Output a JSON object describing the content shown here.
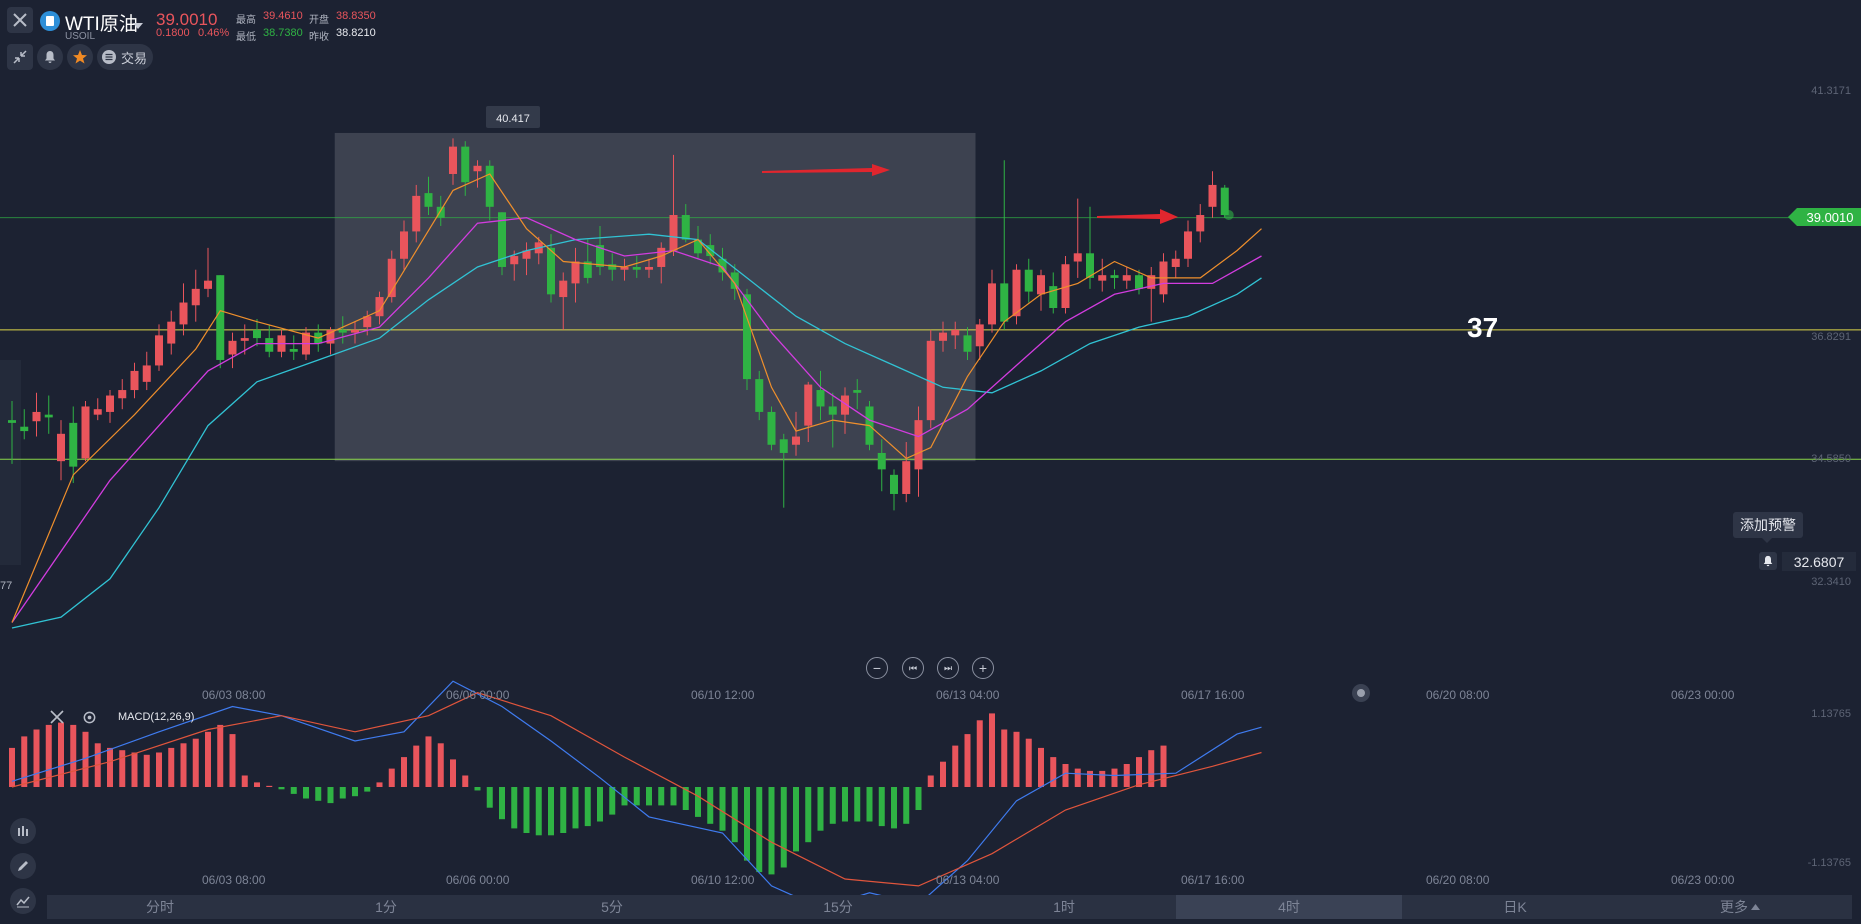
{
  "header": {
    "symbol_name": "WTI原油",
    "symbol_code": "USOIL",
    "last_price": "39.0010",
    "change": "0.1800",
    "change_pct": "0.46%",
    "high_label": "最高",
    "high_value": "39.4610",
    "open_label": "开盘",
    "open_value": "38.8350",
    "low_label": "最低",
    "low_value": "38.7380",
    "prev_close_label": "昨收",
    "prev_close_value": "38.8210",
    "trade_label": "交易"
  },
  "price_axis": {
    "labels": [
      "41.3171",
      "36.8291",
      "34.5850",
      "32.3410"
    ],
    "current_price_tag": "39.0010",
    "alert_price": "32.6807",
    "alert_tooltip": "添加预警",
    "left_cut_label": "77"
  },
  "annotations": {
    "peak_label": "40.417",
    "level_text": "37"
  },
  "time_axis": {
    "labels": [
      "06/03 08:00",
      "06/06 00:00",
      "06/10 12:00",
      "06/13 04:00",
      "06/17 16:00",
      "06/20 08:00",
      "06/23 00:00"
    ]
  },
  "macd": {
    "title": "MACD(12,26,9)",
    "upper_label": "1.13765",
    "lower_label": "-1.13765"
  },
  "controls": {
    "zoom_out": "−",
    "prev": "⏮",
    "next": "⏭",
    "zoom_in": "+"
  },
  "timeframes": [
    {
      "label": "分时",
      "active": false
    },
    {
      "label": "1分",
      "active": false
    },
    {
      "label": "5分",
      "active": false
    },
    {
      "label": "15分",
      "active": false
    },
    {
      "label": "1时",
      "active": false
    },
    {
      "label": "4时",
      "active": true
    },
    {
      "label": "日K",
      "active": false
    },
    {
      "label": "更多",
      "active": false
    }
  ],
  "colors": {
    "background": "#1c2232",
    "up": "#e9555c",
    "down": "#2fb344",
    "ma5": "#ef8f2c",
    "ma10": "#d23cdf",
    "ma20": "#31c3d4",
    "dif": "#3f7bef",
    "dea": "#e0553c"
  },
  "chart_data": {
    "type": "candlestick",
    "x_range": [
      "06/01 12:00",
      "06/19 08:00"
    ],
    "ylim": [
      30.9,
      42.3
    ],
    "candles": [
      {
        "o": 35.3,
        "h": 35.65,
        "l": 34.5,
        "c": 35.25
      },
      {
        "o": 35.18,
        "h": 35.5,
        "l": 34.95,
        "c": 35.1
      },
      {
        "o": 35.28,
        "h": 35.8,
        "l": 35.0,
        "c": 35.45
      },
      {
        "o": 35.4,
        "h": 35.75,
        "l": 35.05,
        "c": 35.35
      },
      {
        "o": 34.55,
        "h": 35.3,
        "l": 34.2,
        "c": 35.05
      },
      {
        "o": 35.25,
        "h": 35.55,
        "l": 34.15,
        "c": 34.45
      },
      {
        "o": 34.6,
        "h": 35.65,
        "l": 34.55,
        "c": 35.55
      },
      {
        "o": 35.4,
        "h": 35.7,
        "l": 35.3,
        "c": 35.5
      },
      {
        "o": 35.45,
        "h": 35.85,
        "l": 35.25,
        "c": 35.75
      },
      {
        "o": 35.7,
        "h": 36.05,
        "l": 35.5,
        "c": 35.85
      },
      {
        "o": 35.85,
        "h": 36.35,
        "l": 35.7,
        "c": 36.2
      },
      {
        "o": 36.0,
        "h": 36.55,
        "l": 35.85,
        "c": 36.3
      },
      {
        "o": 36.3,
        "h": 37.05,
        "l": 36.2,
        "c": 36.85
      },
      {
        "o": 36.7,
        "h": 37.3,
        "l": 36.5,
        "c": 37.1
      },
      {
        "o": 37.05,
        "h": 37.8,
        "l": 36.85,
        "c": 37.45
      },
      {
        "o": 37.4,
        "h": 38.05,
        "l": 37.1,
        "c": 37.7
      },
      {
        "o": 37.7,
        "h": 38.45,
        "l": 37.55,
        "c": 37.85
      },
      {
        "o": 37.95,
        "h": 37.95,
        "l": 36.25,
        "c": 36.4
      },
      {
        "o": 36.5,
        "h": 36.9,
        "l": 36.25,
        "c": 36.75
      },
      {
        "o": 36.75,
        "h": 37.05,
        "l": 36.5,
        "c": 36.8
      },
      {
        "o": 36.95,
        "h": 37.15,
        "l": 36.65,
        "c": 36.8
      },
      {
        "o": 36.8,
        "h": 37.05,
        "l": 36.45,
        "c": 36.55
      },
      {
        "o": 36.55,
        "h": 36.95,
        "l": 36.45,
        "c": 36.85
      },
      {
        "o": 36.6,
        "h": 36.85,
        "l": 36.4,
        "c": 36.55
      },
      {
        "o": 36.5,
        "h": 37.0,
        "l": 36.4,
        "c": 36.9
      },
      {
        "o": 36.9,
        "h": 37.05,
        "l": 36.55,
        "c": 36.7
      },
      {
        "o": 36.7,
        "h": 37.0,
        "l": 36.5,
        "c": 36.95
      },
      {
        "o": 36.95,
        "h": 37.2,
        "l": 36.7,
        "c": 36.9
      },
      {
        "o": 36.9,
        "h": 37.1,
        "l": 36.7,
        "c": 36.95
      },
      {
        "o": 37.0,
        "h": 37.3,
        "l": 36.85,
        "c": 37.2
      },
      {
        "o": 37.2,
        "h": 37.65,
        "l": 37.05,
        "c": 37.55
      },
      {
        "o": 37.55,
        "h": 38.4,
        "l": 37.45,
        "c": 38.25
      },
      {
        "o": 38.25,
        "h": 38.95,
        "l": 38.05,
        "c": 38.75
      },
      {
        "o": 38.75,
        "h": 39.6,
        "l": 38.55,
        "c": 39.4
      },
      {
        "o": 39.45,
        "h": 39.75,
        "l": 39.05,
        "c": 39.2
      },
      {
        "o": 39.2,
        "h": 39.4,
        "l": 38.85,
        "c": 39.0
      },
      {
        "o": 39.8,
        "h": 40.45,
        "l": 39.6,
        "c": 40.3
      },
      {
        "o": 40.3,
        "h": 40.4,
        "l": 39.4,
        "c": 39.65
      },
      {
        "o": 39.85,
        "h": 40.05,
        "l": 39.55,
        "c": 39.95
      },
      {
        "o": 39.95,
        "h": 40.05,
        "l": 38.95,
        "c": 39.2
      },
      {
        "o": 39.1,
        "h": 39.1,
        "l": 37.95,
        "c": 38.1
      },
      {
        "o": 38.15,
        "h": 38.4,
        "l": 37.85,
        "c": 38.3
      },
      {
        "o": 38.25,
        "h": 38.55,
        "l": 37.95,
        "c": 38.4
      },
      {
        "o": 38.35,
        "h": 38.65,
        "l": 38.15,
        "c": 38.55
      },
      {
        "o": 38.45,
        "h": 38.7,
        "l": 37.45,
        "c": 37.6
      },
      {
        "o": 37.55,
        "h": 38.0,
        "l": 36.95,
        "c": 37.85
      },
      {
        "o": 37.8,
        "h": 38.45,
        "l": 37.45,
        "c": 38.2
      },
      {
        "o": 38.2,
        "h": 38.6,
        "l": 37.8,
        "c": 37.9
      },
      {
        "o": 38.5,
        "h": 38.85,
        "l": 37.95,
        "c": 38.1
      },
      {
        "o": 38.15,
        "h": 38.35,
        "l": 37.85,
        "c": 38.05
      },
      {
        "o": 38.05,
        "h": 38.25,
        "l": 37.85,
        "c": 38.1
      },
      {
        "o": 38.1,
        "h": 38.3,
        "l": 37.9,
        "c": 38.05
      },
      {
        "o": 38.05,
        "h": 38.25,
        "l": 37.9,
        "c": 38.1
      },
      {
        "o": 38.1,
        "h": 38.55,
        "l": 37.8,
        "c": 38.45
      },
      {
        "o": 38.4,
        "h": 40.15,
        "l": 38.3,
        "c": 39.05
      },
      {
        "o": 39.05,
        "h": 39.25,
        "l": 38.55,
        "c": 38.6
      },
      {
        "o": 38.6,
        "h": 38.85,
        "l": 38.25,
        "c": 38.35
      },
      {
        "o": 38.5,
        "h": 38.7,
        "l": 38.15,
        "c": 38.3
      },
      {
        "o": 38.25,
        "h": 38.45,
        "l": 37.85,
        "c": 38.0
      },
      {
        "o": 38.0,
        "h": 38.15,
        "l": 37.5,
        "c": 37.7
      },
      {
        "o": 37.6,
        "h": 37.7,
        "l": 35.85,
        "c": 36.05
      },
      {
        "o": 36.05,
        "h": 36.2,
        "l": 35.3,
        "c": 35.45
      },
      {
        "o": 35.45,
        "h": 35.55,
        "l": 34.75,
        "c": 34.85
      },
      {
        "o": 34.95,
        "h": 35.05,
        "l": 33.7,
        "c": 34.7
      },
      {
        "o": 34.85,
        "h": 35.45,
        "l": 34.65,
        "c": 35.0
      },
      {
        "o": 35.2,
        "h": 36.0,
        "l": 34.9,
        "c": 35.95
      },
      {
        "o": 35.85,
        "h": 36.2,
        "l": 35.3,
        "c": 35.55
      },
      {
        "o": 35.55,
        "h": 35.8,
        "l": 34.8,
        "c": 35.4
      },
      {
        "o": 35.4,
        "h": 35.9,
        "l": 35.05,
        "c": 35.75
      },
      {
        "o": 35.85,
        "h": 36.05,
        "l": 35.5,
        "c": 35.8
      },
      {
        "o": 35.55,
        "h": 35.65,
        "l": 34.75,
        "c": 34.85
      },
      {
        "o": 34.7,
        "h": 34.95,
        "l": 34.0,
        "c": 34.4
      },
      {
        "o": 34.3,
        "h": 34.4,
        "l": 33.65,
        "c": 33.95
      },
      {
        "o": 33.95,
        "h": 34.9,
        "l": 33.8,
        "c": 34.55
      },
      {
        "o": 34.4,
        "h": 35.55,
        "l": 33.9,
        "c": 35.3
      },
      {
        "o": 35.3,
        "h": 36.95,
        "l": 35.15,
        "c": 36.75
      },
      {
        "o": 36.75,
        "h": 37.1,
        "l": 36.55,
        "c": 36.9
      },
      {
        "o": 36.85,
        "h": 37.1,
        "l": 36.6,
        "c": 36.95
      },
      {
        "o": 36.85,
        "h": 37.0,
        "l": 36.4,
        "c": 36.55
      },
      {
        "o": 36.65,
        "h": 37.15,
        "l": 36.4,
        "c": 37.05
      },
      {
        "o": 37.05,
        "h": 38.05,
        "l": 36.9,
        "c": 37.8
      },
      {
        "o": 37.8,
        "h": 40.05,
        "l": 36.95,
        "c": 37.1
      },
      {
        "o": 37.2,
        "h": 38.15,
        "l": 37.05,
        "c": 38.05
      },
      {
        "o": 38.05,
        "h": 38.25,
        "l": 37.45,
        "c": 37.65
      },
      {
        "o": 37.6,
        "h": 38.05,
        "l": 37.3,
        "c": 37.95
      },
      {
        "o": 37.75,
        "h": 38.0,
        "l": 37.25,
        "c": 37.35
      },
      {
        "o": 37.35,
        "h": 38.3,
        "l": 37.25,
        "c": 38.15
      },
      {
        "o": 38.2,
        "h": 39.35,
        "l": 37.9,
        "c": 38.35
      },
      {
        "o": 38.35,
        "h": 39.2,
        "l": 37.7,
        "c": 37.9
      },
      {
        "o": 37.85,
        "h": 38.25,
        "l": 37.65,
        "c": 37.95
      },
      {
        "o": 37.95,
        "h": 38.05,
        "l": 37.7,
        "c": 37.9
      },
      {
        "o": 37.85,
        "h": 38.1,
        "l": 37.7,
        "c": 37.95
      },
      {
        "o": 37.95,
        "h": 38.05,
        "l": 37.6,
        "c": 37.7
      },
      {
        "o": 37.7,
        "h": 38.1,
        "l": 37.1,
        "c": 37.95
      },
      {
        "o": 37.6,
        "h": 38.35,
        "l": 37.45,
        "c": 38.2
      },
      {
        "o": 38.1,
        "h": 38.4,
        "l": 37.9,
        "c": 38.25
      },
      {
        "o": 38.25,
        "h": 38.95,
        "l": 38.1,
        "c": 38.75
      },
      {
        "o": 38.75,
        "h": 39.25,
        "l": 38.55,
        "c": 39.05
      },
      {
        "o": 39.2,
        "h": 39.85,
        "l": 39.0,
        "c": 39.6
      },
      {
        "o": 39.55,
        "h": 39.6,
        "l": 39.0,
        "c": 39.05
      }
    ],
    "ma5": [
      [
        0,
        31.6
      ],
      [
        5,
        34.3
      ],
      [
        10,
        35.4
      ],
      [
        15,
        36.6
      ],
      [
        17,
        37.3
      ],
      [
        20,
        37.1
      ],
      [
        25,
        36.8
      ],
      [
        30,
        37.3
      ],
      [
        33,
        38.4
      ],
      [
        36,
        39.5
      ],
      [
        39,
        39.8
      ],
      [
        42,
        38.8
      ],
      [
        45,
        38.2
      ],
      [
        50,
        38.1
      ],
      [
        53,
        38.3
      ],
      [
        56,
        38.6
      ],
      [
        59,
        37.8
      ],
      [
        62,
        35.9
      ],
      [
        64,
        35.1
      ],
      [
        67,
        35.3
      ],
      [
        70,
        35.2
      ],
      [
        73,
        34.6
      ],
      [
        75,
        34.8
      ],
      [
        78,
        36.1
      ],
      [
        81,
        37.1
      ],
      [
        84,
        37.6
      ],
      [
        87,
        37.8
      ],
      [
        90,
        38.2
      ],
      [
        93,
        37.9
      ],
      [
        97,
        37.9
      ],
      [
        100,
        38.4
      ],
      [
        102,
        38.8
      ]
    ],
    "ma10": [
      [
        0,
        31.6
      ],
      [
        4,
        32.9
      ],
      [
        8,
        34.2
      ],
      [
        12,
        35.2
      ],
      [
        16,
        36.2
      ],
      [
        20,
        36.7
      ],
      [
        25,
        36.7
      ],
      [
        30,
        37.0
      ],
      [
        34,
        37.9
      ],
      [
        38,
        38.9
      ],
      [
        42,
        39.0
      ],
      [
        46,
        38.6
      ],
      [
        50,
        38.3
      ],
      [
        54,
        38.4
      ],
      [
        58,
        38.1
      ],
      [
        62,
        36.9
      ],
      [
        66,
        35.9
      ],
      [
        70,
        35.3
      ],
      [
        74,
        35.0
      ],
      [
        78,
        35.5
      ],
      [
        82,
        36.3
      ],
      [
        86,
        37.1
      ],
      [
        90,
        37.6
      ],
      [
        94,
        37.8
      ],
      [
        98,
        37.8
      ],
      [
        102,
        38.3
      ]
    ],
    "ma20": [
      [
        0,
        31.5
      ],
      [
        4,
        31.7
      ],
      [
        8,
        32.4
      ],
      [
        12,
        33.7
      ],
      [
        16,
        35.2
      ],
      [
        20,
        36.0
      ],
      [
        25,
        36.4
      ],
      [
        30,
        36.8
      ],
      [
        34,
        37.5
      ],
      [
        38,
        38.1
      ],
      [
        42,
        38.4
      ],
      [
        46,
        38.6
      ],
      [
        52,
        38.7
      ],
      [
        56,
        38.6
      ],
      [
        60,
        37.9
      ],
      [
        64,
        37.2
      ],
      [
        68,
        36.7
      ],
      [
        72,
        36.3
      ],
      [
        76,
        35.9
      ],
      [
        80,
        35.8
      ],
      [
        84,
        36.2
      ],
      [
        88,
        36.7
      ],
      [
        92,
        37.0
      ],
      [
        96,
        37.2
      ],
      [
        100,
        37.6
      ],
      [
        102,
        37.9
      ]
    ],
    "range_box": {
      "x_from": 27,
      "x_to": 78,
      "y_from": 34.55,
      "y_to": 40.55
    },
    "horizontal_lines": [
      39.001,
      36.95,
      34.585
    ],
    "macd_hist": [
      0.34,
      0.44,
      0.5,
      0.54,
      0.56,
      0.54,
      0.48,
      0.38,
      0.34,
      0.32,
      0.3,
      0.28,
      0.3,
      0.34,
      0.38,
      0.42,
      0.48,
      0.54,
      0.46,
      0.1,
      0.04,
      0.01,
      -0.02,
      -0.06,
      -0.1,
      -0.12,
      -0.14,
      -0.1,
      -0.08,
      -0.04,
      0.04,
      0.16,
      0.26,
      0.36,
      0.44,
      0.38,
      0.24,
      0.1,
      -0.03,
      -0.18,
      -0.28,
      -0.36,
      -0.4,
      -0.42,
      -0.42,
      -0.4,
      -0.36,
      -0.34,
      -0.3,
      -0.24,
      -0.16,
      -0.16,
      -0.16,
      -0.16,
      -0.16,
      -0.2,
      -0.26,
      -0.32,
      -0.38,
      -0.48,
      -0.64,
      -0.74,
      -0.76,
      -0.7,
      -0.56,
      -0.48,
      -0.38,
      -0.32,
      -0.3,
      -0.3,
      -0.3,
      -0.34,
      -0.36,
      -0.32,
      -0.2,
      0.1,
      0.22,
      0.36,
      0.46,
      0.58,
      0.64,
      0.5,
      0.48,
      0.42,
      0.34,
      0.26,
      0.2,
      0.16,
      0.14,
      0.14,
      0.16,
      0.2,
      0.26,
      0.32,
      0.36
    ],
    "macd_dif": [
      [
        0,
        0.05
      ],
      [
        6,
        0.25
      ],
      [
        12,
        0.48
      ],
      [
        18,
        0.7
      ],
      [
        22,
        0.62
      ],
      [
        28,
        0.4
      ],
      [
        32,
        0.48
      ],
      [
        36,
        0.92
      ],
      [
        40,
        0.7
      ],
      [
        44,
        0.4
      ],
      [
        48,
        0.08
      ],
      [
        52,
        -0.26
      ],
      [
        58,
        -0.4
      ],
      [
        62,
        -0.86
      ],
      [
        66,
        -1.05
      ],
      [
        70,
        -0.92
      ],
      [
        74,
        -1.02
      ],
      [
        78,
        -0.64
      ],
      [
        82,
        -0.12
      ],
      [
        86,
        0.12
      ],
      [
        90,
        0.1
      ],
      [
        95,
        0.12
      ],
      [
        100,
        0.46
      ],
      [
        102,
        0.52
      ]
    ],
    "macd_dea": [
      [
        0,
        0.0
      ],
      [
        8,
        0.22
      ],
      [
        16,
        0.5
      ],
      [
        22,
        0.62
      ],
      [
        28,
        0.48
      ],
      [
        34,
        0.62
      ],
      [
        38,
        0.82
      ],
      [
        44,
        0.62
      ],
      [
        50,
        0.26
      ],
      [
        56,
        -0.08
      ],
      [
        62,
        -0.48
      ],
      [
        68,
        -0.8
      ],
      [
        74,
        -0.86
      ],
      [
        80,
        -0.58
      ],
      [
        86,
        -0.2
      ],
      [
        92,
        0.02
      ],
      [
        98,
        0.18
      ],
      [
        102,
        0.3
      ]
    ]
  }
}
